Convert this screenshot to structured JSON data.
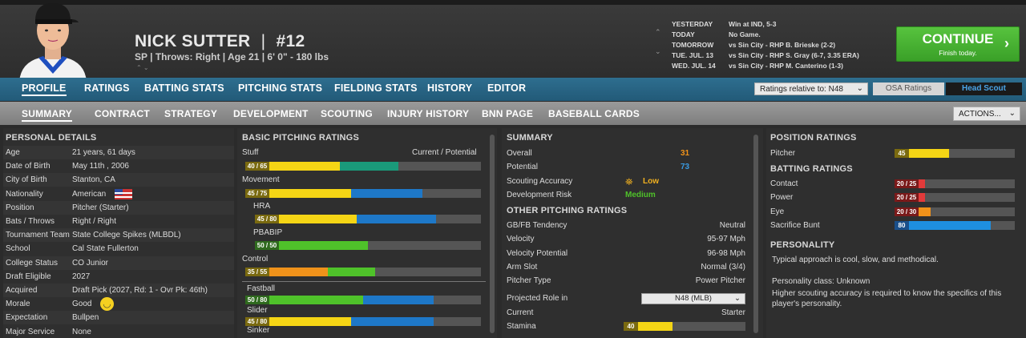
{
  "header": {
    "name": "NICK SUTTER",
    "number": "#12",
    "separator": "|",
    "details": "SP | Throws: Right  | Age 21  |  6' 0\" - 180 lbs"
  },
  "schedule": [
    {
      "day": "YESTERDAY",
      "text": "Win at IND, 5-3"
    },
    {
      "day": "TODAY",
      "text": "No Game."
    },
    {
      "day": "TOMORROW",
      "text": "vs Sin City - RHP B. Brieske (2-2)"
    },
    {
      "day": "TUE. JUL. 13",
      "text": "vs Sin City - RHP S. Gray (6-7, 3.35 ERA)"
    },
    {
      "day": "WED. JUL. 14",
      "text": "vs Sin City - RHP M. Canterino (1-3)"
    }
  ],
  "continue": {
    "label": "CONTINUE",
    "sub": "Finish today."
  },
  "nav_main": [
    "PROFILE",
    "RATINGS",
    "BATTING STATS",
    "PITCHING STATS",
    "FIELDING STATS",
    "HISTORY",
    "EDITOR"
  ],
  "ratings_relative": "Ratings relative to: N48",
  "osa": "OSA Ratings",
  "head_scout": "Head Scout",
  "nav_sub": [
    "SUMMARY",
    "CONTRACT",
    "STRATEGY",
    "DEVELOPMENT",
    "SCOUTING",
    "INJURY HISTORY",
    "BNN PAGE",
    "BASEBALL CARDS"
  ],
  "actions": "ACTIONS...",
  "personal": {
    "title": "PERSONAL DETAILS",
    "rows": [
      {
        "label": "Age",
        "value": "21 years, 61 days"
      },
      {
        "label": "Date of Birth",
        "value": "May 11th , 2006"
      },
      {
        "label": "City of Birth",
        "value": "Stanton, CA"
      },
      {
        "label": "Nationality",
        "value": "American"
      },
      {
        "label": "Position",
        "value": "Pitcher (Starter)"
      },
      {
        "label": "Bats / Throws",
        "value": "Right / Right"
      },
      {
        "label": "Tournament Team",
        "value": "State College Spikes (MLBDL)"
      },
      {
        "label": "School",
        "value": "Cal State Fullerton"
      },
      {
        "label": "College Status",
        "value": "CO Junior"
      },
      {
        "label": "Draft Eligible",
        "value": "2027"
      },
      {
        "label": "Acquired",
        "value": "Draft Pick (2027, Rd: 1 - Ovr Pk: 46th)"
      },
      {
        "label": "Morale",
        "value": "Good"
      },
      {
        "label": "Expectation",
        "value": "Bullpen"
      },
      {
        "label": "Major Service",
        "value": "None"
      }
    ]
  },
  "pitching": {
    "title": "BASIC PITCHING RATINGS",
    "col": "Current / Potential",
    "rows": [
      {
        "label": "Stuff",
        "badge": "40 / 65",
        "current": 40,
        "potential": 65,
        "c1": "#f5d515",
        "c2": "#1a9a7a"
      },
      {
        "label": "Movement",
        "badge": "45 / 75",
        "current": 45,
        "potential": 75,
        "c1": "#f5d515",
        "c2": "#1e78c8"
      },
      {
        "label": "HRA",
        "badge": "45 / 80",
        "current": 45,
        "potential": 80,
        "c1": "#f5d515",
        "c2": "#1e78c8"
      },
      {
        "label": "PBABIP",
        "badge": "50 / 50",
        "current": 50,
        "potential": 50,
        "c1": "#4fc22a",
        "c2": "#4fc22a"
      },
      {
        "label": "Control",
        "badge": "35 / 55",
        "current": 35,
        "potential": 55,
        "c1": "#f0921a",
        "c2": "#4fc22a"
      },
      {
        "label": "Fastball",
        "badge": "50 / 80",
        "current": 50,
        "potential": 80,
        "c1": "#4fc22a",
        "c2": "#1e78c8"
      },
      {
        "label": "Slider",
        "badge": "45 / 80",
        "current": 45,
        "potential": 80,
        "c1": "#f5d515",
        "c2": "#1e78c8"
      },
      {
        "label": "Sinker",
        "badge": "",
        "current": 0,
        "potential": 0,
        "c1": "#f5d515",
        "c2": "#1e78c8"
      }
    ]
  },
  "summary": {
    "title": "SUMMARY",
    "overall_label": "Overall",
    "overall": "31",
    "overall_color": "#f0921a",
    "potential_label": "Potential",
    "potential": "73",
    "potential_color": "#3a9ae0",
    "scout_label": "Scouting Accuracy",
    "scout_value": "Low",
    "scout_color": "#f0b020",
    "risk_label": "Development Risk",
    "risk_value": "Medium",
    "risk_color": "#4fc22a",
    "other_title": "OTHER PITCHING RATINGS",
    "other": [
      {
        "label": "GB/FB Tendency",
        "value": "Neutral"
      },
      {
        "label": "Velocity",
        "value": "95-97 Mph"
      },
      {
        "label": "Velocity Potential",
        "value": "96-98 Mph"
      },
      {
        "label": "Arm Slot",
        "value": "Normal (3/4)"
      },
      {
        "label": "Pitcher Type",
        "value": "Power Pitcher"
      }
    ],
    "role_label": "Projected Role in",
    "role_value": "N48 (MLB)",
    "current_label": "Current",
    "current_value": "Starter",
    "stamina_label": "Stamina",
    "stamina": "40",
    "stamina_level": 40
  },
  "position": {
    "title": "POSITION RATINGS",
    "pitcher_label": "Pitcher",
    "pitcher": "45",
    "pitcher_level": 45
  },
  "batting": {
    "title": "BATTING RATINGS",
    "rows": [
      {
        "label": "Contact",
        "badge": "20 / 25",
        "current": 20,
        "potential": 25,
        "c1": "#e23a3a",
        "c2": "#e23a3a"
      },
      {
        "label": "Power",
        "badge": "20 / 25",
        "current": 20,
        "potential": 25,
        "c1": "#e23a3a",
        "c2": "#e23a3a"
      },
      {
        "label": "Eye",
        "badge": "20 / 30",
        "current": 20,
        "potential": 30,
        "c1": "#e23a3a",
        "c2": "#f0921a"
      },
      {
        "label": "Sacrifice Bunt",
        "badge": "80",
        "current": 80,
        "potential": 80,
        "c1": "#1e8fe0",
        "c2": "#1e8fe0"
      }
    ]
  },
  "personality": {
    "title": "PERSONALITY",
    "text1": "Typical approach is cool, slow, and methodical.",
    "text2": "Personality class: Unknown",
    "text3": "Higher scouting accuracy is required to know the specifics of this player's personality."
  }
}
